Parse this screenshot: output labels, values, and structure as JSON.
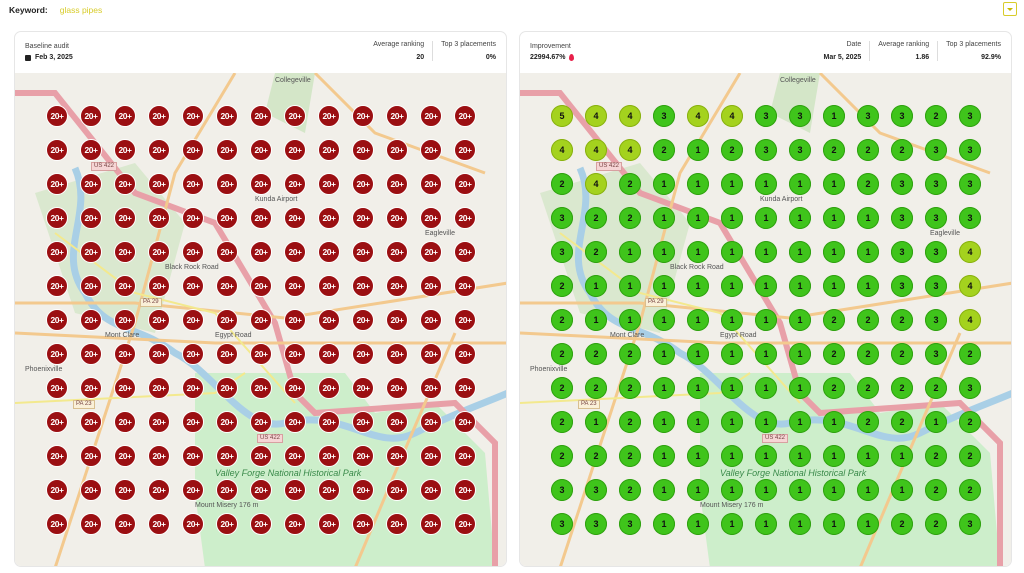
{
  "keyword": {
    "label": "Keyword:",
    "value": "glass pipes"
  },
  "colors": {
    "red": "#9b0f12",
    "green": "#3fc41b",
    "yellowgreen": "#a4d21e",
    "accent": "#d8cc2a"
  },
  "map_labels": {
    "collegeville": "Collegeville",
    "eagleville": "Eagleville",
    "phoenixville": "Phoenixville",
    "mont_clare": "Mont Clare",
    "us422": "US 422",
    "pa29": "PA 29",
    "pa23": "PA 23",
    "egypt_road": "Egypt Road",
    "black_rock_road": "Black Rock Road",
    "park": "Valley Forge National Historical Park",
    "mount_misery": "Mount Misery 176 m",
    "airport": "Kunda Airport"
  },
  "baseline": {
    "title": "Baseline audit",
    "date": "Feb 3, 2025",
    "avg_label": "Average ranking",
    "avg": "20",
    "top3_label": "Top 3 placements",
    "top3": "0%",
    "grid": [
      [
        "20+",
        "20+",
        "20+",
        "20+",
        "20+",
        "20+",
        "20+",
        "20+",
        "20+",
        "20+",
        "20+",
        "20+",
        "20+"
      ],
      [
        "20+",
        "20+",
        "20+",
        "20+",
        "20+",
        "20+",
        "20+",
        "20+",
        "20+",
        "20+",
        "20+",
        "20+",
        "20+"
      ],
      [
        "20+",
        "20+",
        "20+",
        "20+",
        "20+",
        "20+",
        "20+",
        "20+",
        "20+",
        "20+",
        "20+",
        "20+",
        "20+"
      ],
      [
        "20+",
        "20+",
        "20+",
        "20+",
        "20+",
        "20+",
        "20+",
        "20+",
        "20+",
        "20+",
        "20+",
        "20+",
        "20+"
      ],
      [
        "20+",
        "20+",
        "20+",
        "20+",
        "20+",
        "20+",
        "20+",
        "20+",
        "20+",
        "20+",
        "20+",
        "20+",
        "20+"
      ],
      [
        "20+",
        "20+",
        "20+",
        "20+",
        "20+",
        "20+",
        "20+",
        "20+",
        "20+",
        "20+",
        "20+",
        "20+",
        "20+"
      ],
      [
        "20+",
        "20+",
        "20+",
        "20+",
        "20+",
        "20+",
        "20+",
        "20+",
        "20+",
        "20+",
        "20+",
        "20+",
        "20+"
      ],
      [
        "20+",
        "20+",
        "20+",
        "20+",
        "20+",
        "20+",
        "20+",
        "20+",
        "20+",
        "20+",
        "20+",
        "20+",
        "20+"
      ],
      [
        "20+",
        "20+",
        "20+",
        "20+",
        "20+",
        "20+",
        "20+",
        "20+",
        "20+",
        "20+",
        "20+",
        "20+",
        "20+"
      ],
      [
        "20+",
        "20+",
        "20+",
        "20+",
        "20+",
        "20+",
        "20+",
        "20+",
        "20+",
        "20+",
        "20+",
        "20+",
        "20+"
      ],
      [
        "20+",
        "20+",
        "20+",
        "20+",
        "20+",
        "20+",
        "20+",
        "20+",
        "20+",
        "20+",
        "20+",
        "20+",
        "20+"
      ],
      [
        "20+",
        "20+",
        "20+",
        "20+",
        "20+",
        "20+",
        "20+",
        "20+",
        "20+",
        "20+",
        "20+",
        "20+",
        "20+"
      ],
      [
        "20+",
        "20+",
        "20+",
        "20+",
        "20+",
        "20+",
        "20+",
        "20+",
        "20+",
        "20+",
        "20+",
        "20+",
        "20+"
      ]
    ]
  },
  "current": {
    "improvement_label": "Improvement",
    "improvement": "22994.67%",
    "date_label": "Date",
    "date": "Mar 5, 2025",
    "avg_label": "Average ranking",
    "avg": "1.86",
    "top3_label": "Top 3 placements",
    "top3": "92.9%",
    "grid": [
      [
        "5",
        "4",
        "4",
        "3",
        "4",
        "4",
        "3",
        "3",
        "1",
        "3",
        "3",
        "2",
        "3"
      ],
      [
        "4",
        "4",
        "4",
        "2",
        "1",
        "2",
        "3",
        "3",
        "2",
        "2",
        "2",
        "3",
        "3"
      ],
      [
        "2",
        "4",
        "2",
        "1",
        "1",
        "1",
        "1",
        "1",
        "1",
        "2",
        "3",
        "3",
        "3"
      ],
      [
        "3",
        "2",
        "2",
        "1",
        "1",
        "1",
        "1",
        "1",
        "1",
        "1",
        "3",
        "3",
        "3"
      ],
      [
        "3",
        "2",
        "1",
        "1",
        "1",
        "1",
        "1",
        "1",
        "1",
        "1",
        "3",
        "3",
        "4"
      ],
      [
        "2",
        "1",
        "1",
        "1",
        "1",
        "1",
        "1",
        "1",
        "1",
        "1",
        "3",
        "3",
        "4"
      ],
      [
        "2",
        "1",
        "1",
        "1",
        "1",
        "1",
        "1",
        "1",
        "2",
        "2",
        "2",
        "3",
        "4"
      ],
      [
        "2",
        "2",
        "2",
        "1",
        "1",
        "1",
        "1",
        "1",
        "2",
        "2",
        "2",
        "3",
        "2"
      ],
      [
        "2",
        "2",
        "2",
        "1",
        "1",
        "1",
        "1",
        "1",
        "2",
        "2",
        "2",
        "2",
        "3"
      ],
      [
        "2",
        "1",
        "2",
        "1",
        "1",
        "1",
        "1",
        "1",
        "1",
        "2",
        "2",
        "1",
        "2"
      ],
      [
        "2",
        "2",
        "2",
        "1",
        "1",
        "1",
        "1",
        "1",
        "1",
        "1",
        "1",
        "2",
        "2"
      ],
      [
        "3",
        "3",
        "2",
        "1",
        "1",
        "1",
        "1",
        "1",
        "1",
        "1",
        "1",
        "2",
        "2"
      ],
      [
        "3",
        "3",
        "3",
        "1",
        "1",
        "1",
        "1",
        "1",
        "1",
        "1",
        "2",
        "2",
        "3"
      ]
    ]
  }
}
